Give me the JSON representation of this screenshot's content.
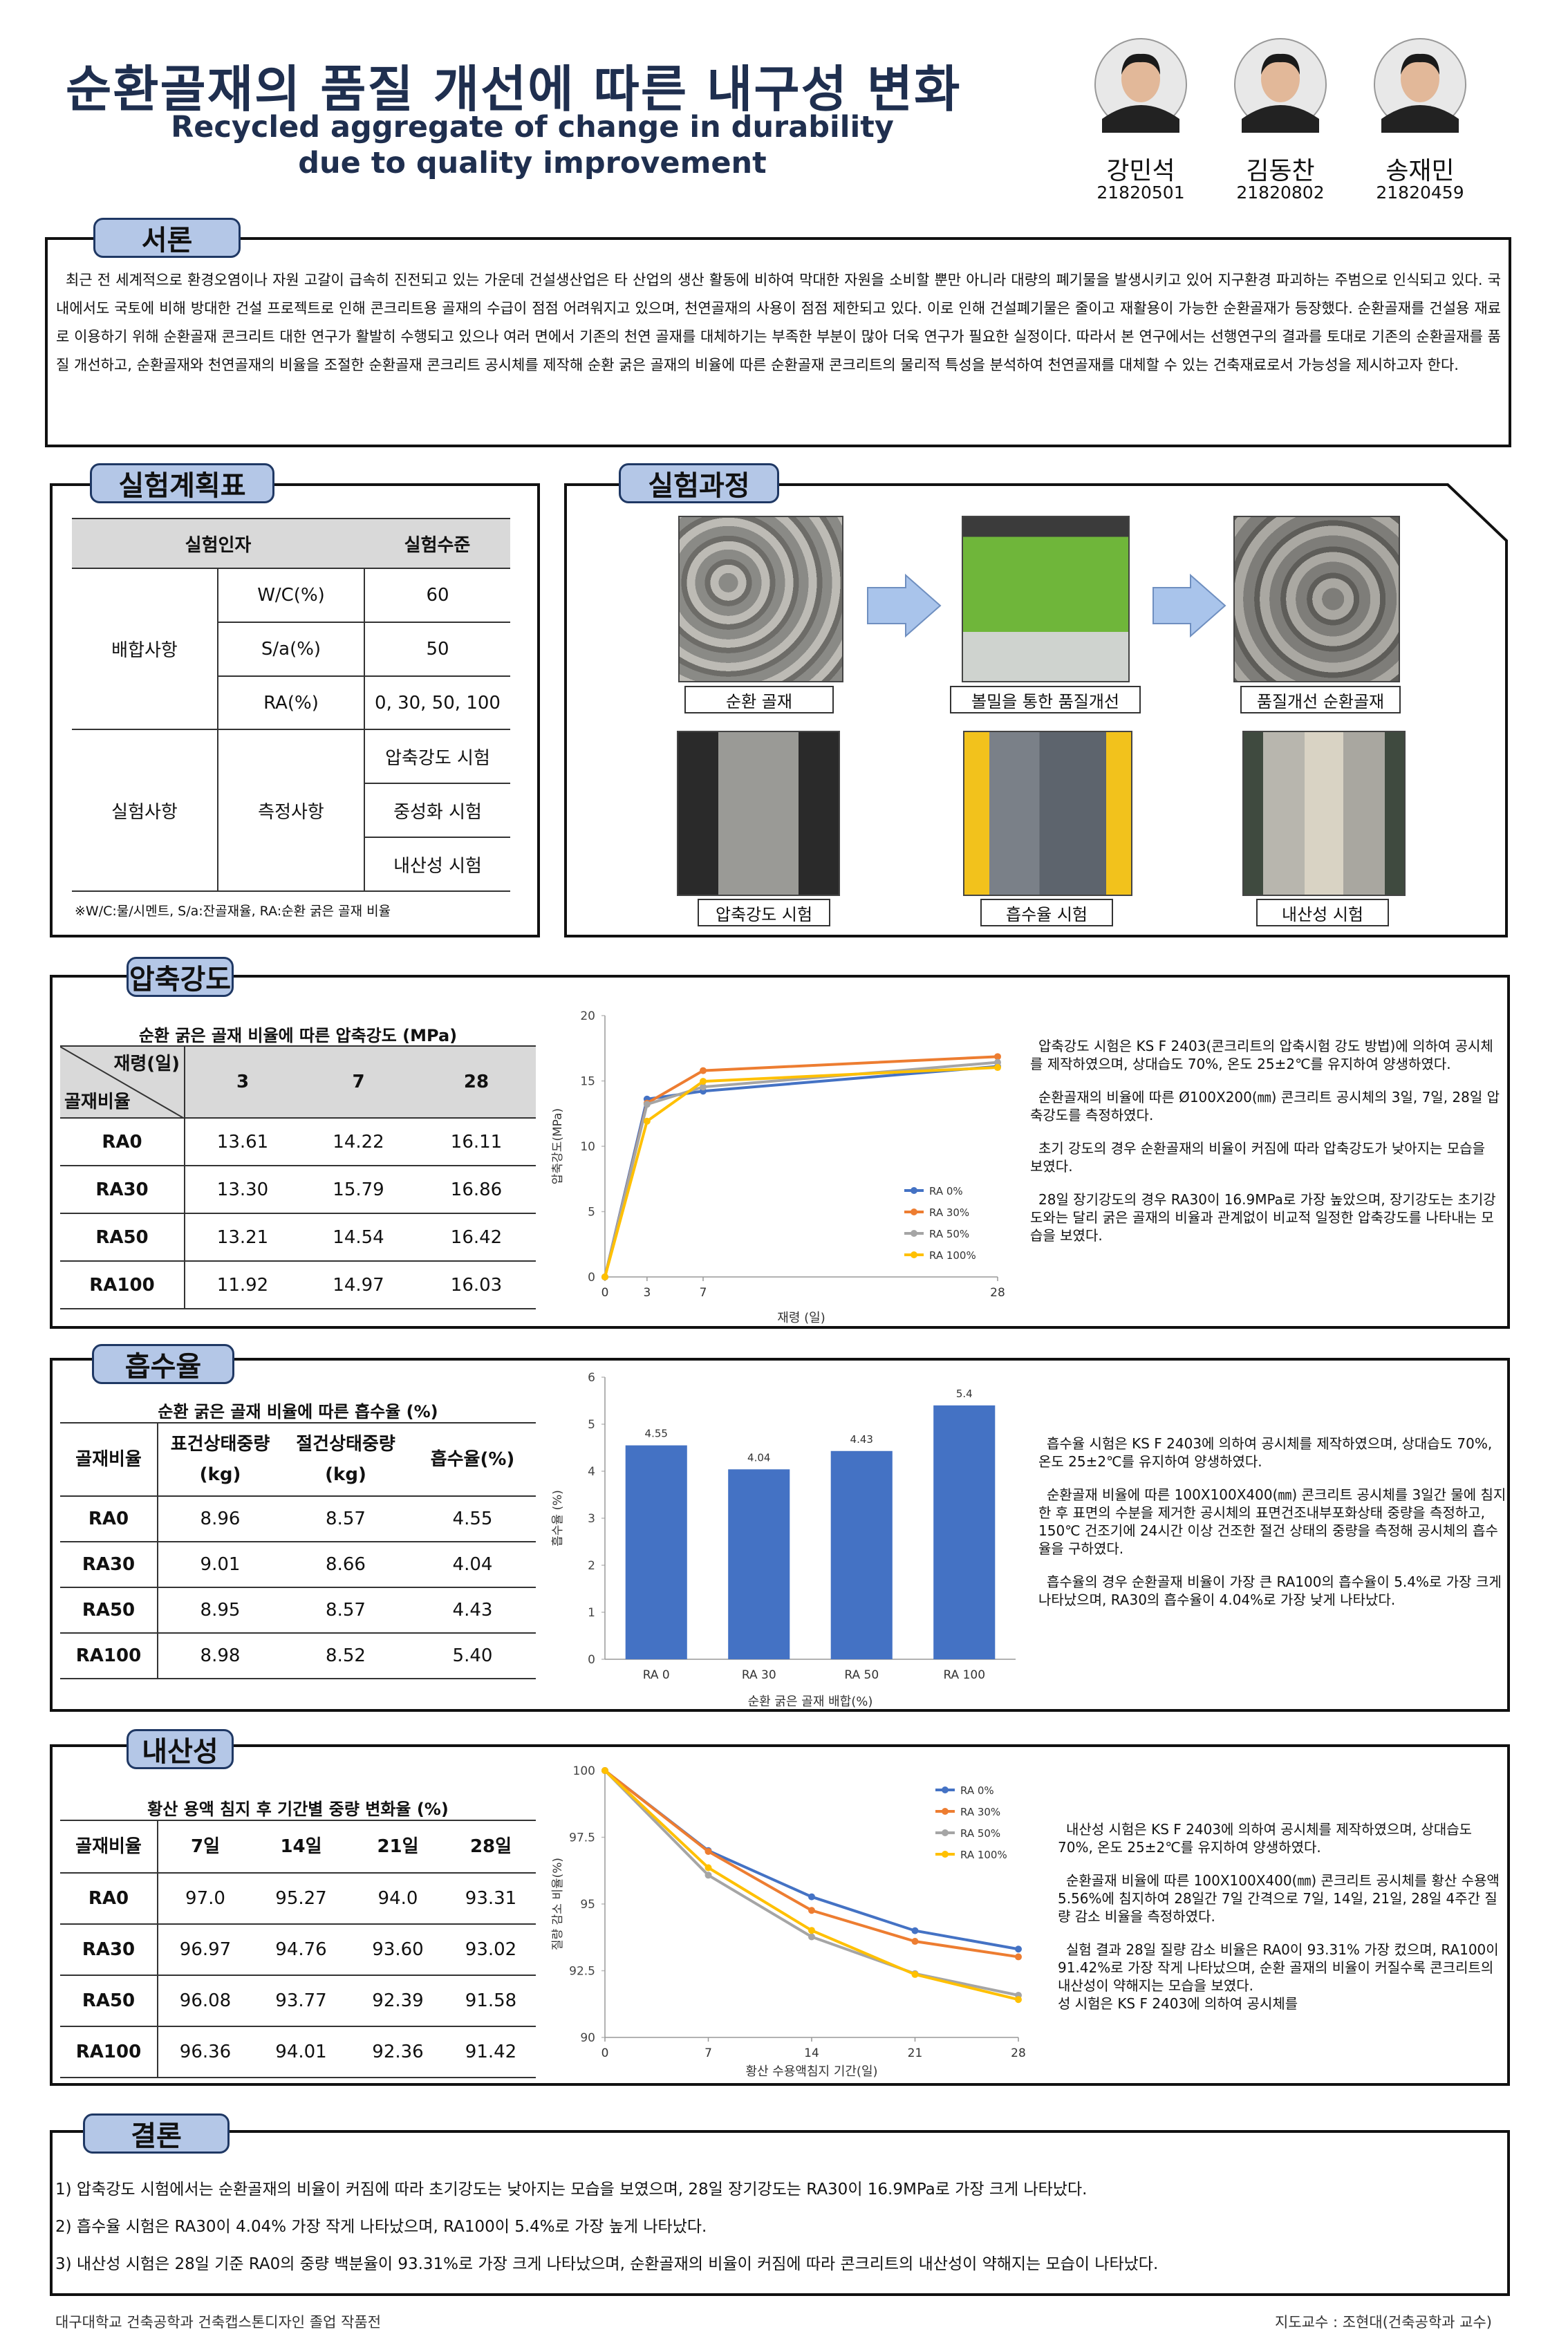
{
  "header": {
    "title": "순환골재의 품질 개선에 따른 내구성 변화",
    "subtitle": [
      "Recycled aggregate of change in durability",
      "due to quality improvement"
    ],
    "members": [
      {
        "name": "강민석",
        "id": "21820501"
      },
      {
        "name": "김동찬",
        "id": "21820802"
      },
      {
        "name": "송재민",
        "id": "21820459"
      }
    ]
  },
  "intro": {
    "heading": "서론",
    "text": "최근 전 세계적으로 환경오염이나 자원 고갈이 급속히 진전되고 있는 가운데 건설생산업은 타 산업의 생산 활동에 비하여 막대한 자원을 소비할 뿐만 아니라 대량의 폐기물을 발생시키고 있어 지구환경 파괴하는 주범으로 인식되고 있다.  국내에서도 국토에 비해 방대한 건설 프로젝트로 인해 콘크리트용 골재의 수급이 점점 어려워지고 있으며, 천연골재의 사용이 점점 제한되고 있다.  이로 인해 건설폐기물은 줄이고 재활용이 가능한 순환골재가 등장했다. 순환골재를 건설용 재료로 이용하기 위해 순환골재 콘크리트 대한 연구가 활발히 수행되고 있으나 여러 면에서 기존의 천연 골재를 대체하기는 부족한 부분이 많아 더욱 연구가 필요한 실정이다. 따라서 본 연구에서는 선행연구의 결과를 토대로 기존의 순환골재를 품질 개선하고, 순환골재와 천연골재의 비율을 조절한 순환골재 콘크리트 공시체를 제작해 순환 굵은 골재의 비율에 따른 순환골재 콘크리트의 물리적 특성을 분석하여 천연골재를 대체할 수 있는 건축재료로서 가능성을 제시하고자 한다."
  },
  "plan": {
    "heading": "실험계획표",
    "header": [
      "실험인자",
      "실험수준"
    ],
    "mix": "배합사항",
    "mix_rows": [
      [
        "W/C(%)",
        "60"
      ],
      [
        "S/a(%)",
        "50"
      ],
      [
        "RA(%)",
        "0, 30, 50, 100"
      ]
    ],
    "test": "실험사항",
    "test_sub": "측정사항",
    "test_rows": [
      "압축강도 시험",
      "중성화 시험",
      "내산성 시험"
    ],
    "note": "※W/C:물/시멘트, S/a:잔골재율, RA:순환 굵은 골재 비율"
  },
  "process": {
    "heading": "실험과정",
    "steps": [
      "순환 골재",
      "볼밀을 통한 품질개선",
      "품질개선 순환골재",
      "압축강도 시험",
      "흡수율 시험",
      "내산성 시험"
    ]
  },
  "compressive": {
    "heading": "압축강도",
    "table_title": "순환 굵은 골재 비율에 따른 압축강도 (MPa)",
    "corner": [
      "재령(일)",
      "골재비율"
    ],
    "columns": [
      "3",
      "7",
      "28"
    ],
    "rows": [
      [
        "RA0",
        "13.61",
        "14.22",
        "16.11"
      ],
      [
        "RA30",
        "13.30",
        "15.79",
        "16.86"
      ],
      [
        "RA50",
        "13.21",
        "14.54",
        "16.42"
      ],
      [
        "RA100",
        "11.92",
        "14.97",
        "16.03"
      ]
    ],
    "text": [
      "압축강도 시험은 KS F 2403(콘크리트의 압축시험 강도 방법)에 의하여 공시체를 제작하였으며, 상대습도 70%, 온도 25±2℃를 유지하여 양생하였다.",
      "순환골재의 비율에 따른 Ø100X200(㎜) 콘크리트 공시체의 3일, 7일, 28일 압축강도를 측정하였다.",
      "초기 강도의 경우 순환골재의 비율이 커짐에 따라 압축강도가 낮아지는 모습을 보였다.",
      "28일 장기강도의 경우 RA30이 16.9MPa로 가장 높았으며, 장기강도는 초기강도와는 달리 굵은 골재의 비율과 관계없이 비교적 일정한 압축강도를 나타내는 모습을 보였다."
    ]
  },
  "absorption": {
    "heading": "흡수율",
    "table_title": "순환 굵은 골재 비율에 따른 흡수율 (%)",
    "columns": [
      [
        "골재비율"
      ],
      [
        "표건상태중량",
        "(kg)"
      ],
      [
        "절건상태중량",
        "(kg)"
      ],
      [
        "흡수율(%)"
      ]
    ],
    "rows": [
      [
        "RA0",
        "8.96",
        "8.57",
        "4.55"
      ],
      [
        "RA30",
        "9.01",
        "8.66",
        "4.04"
      ],
      [
        "RA50",
        "8.95",
        "8.57",
        "4.43"
      ],
      [
        "RA100",
        "8.98",
        "8.52",
        "5.40"
      ]
    ],
    "text": [
      "흡수율 시험은 KS F 2403에 의하여 공시체를 제작하였으며, 상대습도 70%, 온도 25±2℃를 유지하여 양생하였다.",
      "순환골재 비율에 따른 100X100X400(㎜) 콘크리트 공시체를 3일간 물에 침지한  후 표면의 수분을 제거한 공시체의 표면건조내부포화상태 중량을 측정하고, 150℃ 건조기에 24시간 이상 건조한 절건 상태의 중량을 측정해 공시체의 흡수율을 구하였다.",
      "흡수율의 경우 순환골재 비율이 가장 큰 RA100의 흡수율이 5.4%로 가장 크게 나타났으며, RA30의 흡수율이 4.04%로 가장 낮게 나타났다."
    ]
  },
  "acid": {
    "heading": "내산성",
    "table_title": "황산 용액 침지 후 기간별 중량 변화율 (%)",
    "columns": [
      [
        "골재비율"
      ],
      [
        "7일"
      ],
      [
        "14일"
      ],
      [
        "21일"
      ],
      [
        "28일"
      ]
    ],
    "rows": [
      [
        "RA0",
        "97.0",
        "95.27",
        "94.0",
        "93.31"
      ],
      [
        "RA30",
        "96.97",
        "94.76",
        "93.60",
        "93.02"
      ],
      [
        "RA50",
        "96.08",
        "93.77",
        "92.39",
        "91.58"
      ],
      [
        "RA100",
        "96.36",
        "94.01",
        "92.36",
        "91.42"
      ]
    ],
    "text": [
      "내산성 시험은 KS F 2403에 의하여 공시체를 제작하였으며, 상대습도 70%, 온도 25±2℃를 유지하여 양생하였다.",
      "순환골재 비율에 따른 100X100X400(㎜) 콘크리트 공시체를 황산 수용액 5.56%에 침지하여 28일간 7일 간격으로 7일, 14일, 21일, 28일 4주간 질량 감소 비율을 측정하였다.",
      "실험 결과 28일 질량 감소 비율은 RA0이 93.31% 가장 컸으며, RA100이 91.42%로 가장 작게 나타났으며, 순환 골재의 비율이 커질수록 콘크리트의 내산성이 약해지는 모습을  보였다.",
      "성 시험은 KS F 2403에 의하여 공시체를"
    ]
  },
  "conclusion": {
    "heading": "결론",
    "items": [
      "1)  압축강도 시험에서는 순환골재의 비율이 커짐에 따라 초기강도는 낮아지는 모습을 보였으며, 28일 장기강도는 RA30이 16.9MPa로 가장 크게 나타났다.",
      "2)  흡수율 시험은 RA30이 4.04% 가장 작게 나타났으며, RA100이 5.4%로 가장 높게 나타났다.",
      "3)  내산성 시험은 28일 기준 RA0의 중량 백분율이 93.31%로 가장 크게 나타났으며, 순환골재의 비율이 커짐에 따라 콘크리트의 내산성이 약해지는 모습이 나타났다."
    ]
  },
  "footer": {
    "left": "대구대학교 건축공학과 건축캡스톤디자인 졸업 작품전",
    "right": "지도교수 : 조현대(건축공학과 교수)"
  },
  "chart_data": [
    {
      "type": "line",
      "x_label": "재령 (일)",
      "y_label": "압축강도(MPa)",
      "x": [
        0,
        3,
        7,
        28
      ],
      "xlim": [
        0,
        28
      ],
      "xticks": [
        0,
        3,
        7,
        28
      ],
      "ylim": [
        0,
        20
      ],
      "yticks": [
        0,
        5,
        10,
        15,
        20
      ],
      "grid": false,
      "legend": "lower right",
      "series": [
        {
          "name": "RA 0%",
          "color": "#4472c4",
          "values": [
            0,
            13.61,
            14.22,
            16.11
          ]
        },
        {
          "name": "RA 30%",
          "color": "#ed7d31",
          "values": [
            0,
            13.3,
            15.79,
            16.86
          ]
        },
        {
          "name": "RA 50%",
          "color": "#a5a5a5",
          "values": [
            0,
            13.21,
            14.54,
            16.42
          ]
        },
        {
          "name": "RA 100%",
          "color": "#ffc000",
          "values": [
            0,
            11.92,
            14.97,
            16.03
          ]
        }
      ]
    },
    {
      "type": "bar",
      "x_label": "순환 굵은 골재 배합(%)",
      "y_label": "흡수율 (%)",
      "categories": [
        "RA 0",
        "RA 30",
        "RA 50",
        "RA 100"
      ],
      "values": [
        4.55,
        4.04,
        4.43,
        5.4
      ],
      "color": "#4472c4",
      "ylim": [
        0,
        6
      ],
      "yticks": [
        0,
        1,
        2,
        3,
        4,
        5,
        6
      ],
      "grid": false
    },
    {
      "type": "line",
      "x_label": "황산 수용액침지 기간(일)",
      "y_label": "질량 감소 비율(%)",
      "x": [
        0,
        7,
        14,
        21,
        28
      ],
      "xlim": [
        0,
        28
      ],
      "xticks": [
        0,
        7,
        14,
        21,
        28
      ],
      "ylim": [
        90,
        100
      ],
      "yticks": [
        90,
        92.5,
        95,
        97.5,
        100
      ],
      "grid": false,
      "legend": "upper right",
      "series": [
        {
          "name": "RA 0%",
          "color": "#4472c4",
          "values": [
            100,
            97.0,
            95.27,
            94.0,
            93.31
          ]
        },
        {
          "name": "RA 30%",
          "color": "#ed7d31",
          "values": [
            100,
            96.97,
            94.76,
            93.6,
            93.02
          ]
        },
        {
          "name": "RA 50%",
          "color": "#a5a5a5",
          "values": [
            100,
            96.08,
            93.77,
            92.39,
            91.58
          ]
        },
        {
          "name": "RA 100%",
          "color": "#ffc000",
          "values": [
            100,
            96.36,
            94.01,
            92.36,
            91.42
          ]
        }
      ]
    }
  ]
}
